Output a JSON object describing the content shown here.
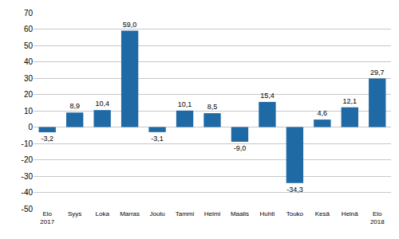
{
  "chart_data": {
    "type": "bar",
    "categories": [
      "Elo 2017",
      "Syys",
      "Loka",
      "Marras",
      "Joulu",
      "Tammi",
      "Helmi",
      "Maalis",
      "Huhti",
      "Touko",
      "Kesä",
      "Heinä",
      "Elo 2018"
    ],
    "values": [
      -3.2,
      8.9,
      10.4,
      59.0,
      -3.1,
      10.1,
      8.5,
      -9.0,
      15.4,
      -34.3,
      4.6,
      12.1,
      29.7
    ],
    "value_labels": [
      "-3,2",
      "8,9",
      "10,4",
      "59,0",
      "-3,1",
      "10,1",
      "8,5",
      "-9,0",
      "15,4",
      "-34,3",
      "4,6",
      "12,1",
      "29,7"
    ],
    "data_labels": true,
    "color": "#1f6aa5",
    "ylim": [
      -50,
      70
    ],
    "yticks": [
      -50,
      -40,
      -30,
      -20,
      -10,
      0,
      10,
      20,
      30,
      40,
      50,
      60,
      70
    ],
    "grid": true
  }
}
